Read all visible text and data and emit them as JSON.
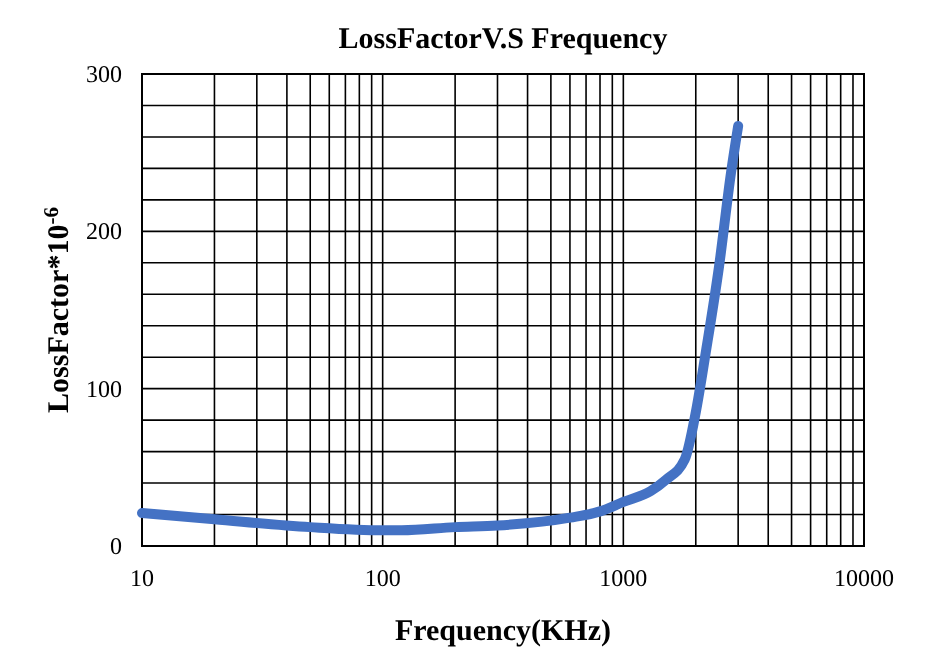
{
  "chart_data": {
    "type": "line",
    "title": "LossFactorV.S Frequency",
    "xlabel": "Frequency(KHz)",
    "ylabel": "LossFactor*10$^{-6}$",
    "log": "x",
    "grid": true,
    "xlim": [
      10,
      10000
    ],
    "xticks": [
      10,
      100,
      1000,
      10000
    ],
    "ylim": [
      0,
      300
    ],
    "yticks": [
      0,
      100,
      200,
      300
    ],
    "series": [
      {
        "color": "#4472c4",
        "x": [
          10,
          20,
          50,
          100,
          120,
          200,
          300,
          600,
          800,
          1000,
          1300,
          1500,
          1800,
          2000,
          2200,
          2500,
          2800,
          3000
        ],
        "values": [
          21,
          17,
          12,
          10,
          10,
          12,
          13,
          18,
          22,
          28,
          35,
          42,
          55,
          85,
          123,
          178,
          237,
          267
        ]
      }
    ]
  }
}
